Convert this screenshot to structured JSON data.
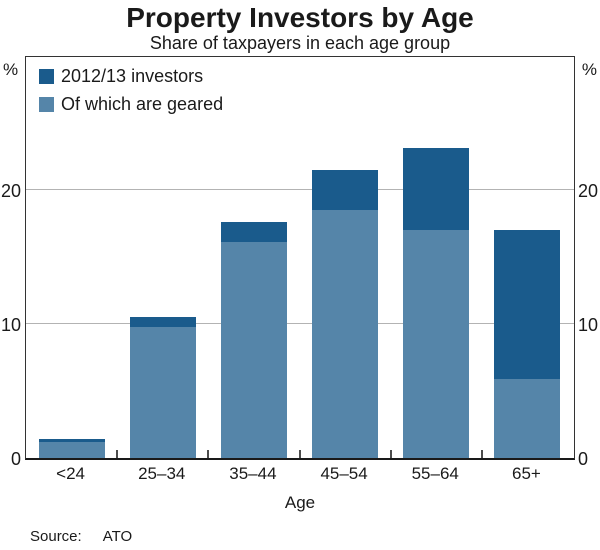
{
  "title": "Property Investors by Age",
  "subtitle": "Share of taxpayers in each age group",
  "axis": {
    "unit_left": "%",
    "unit_right": "%",
    "xlabel": "Age"
  },
  "source": {
    "label": "Source:",
    "value": "ATO"
  },
  "colors": {
    "investors_dark_blue": "#1a5b8c",
    "geared_light_blue": "#5585a9",
    "gridline_gray": "#b3b3b3",
    "axis_dark": "#333333"
  },
  "chart_data": {
    "type": "bar",
    "title": "Property Investors by Age",
    "subtitle": "Share of taxpayers in each age group",
    "xlabel": "Age",
    "ylabel": "%",
    "ylim": [
      0,
      30
    ],
    "yticks": [
      0,
      10,
      20
    ],
    "grid": true,
    "legend_position": "top-left",
    "categories": [
      "<24",
      "25–34",
      "35–44",
      "45–54",
      "55–64",
      "65+"
    ],
    "series": [
      {
        "name": "2012/13 investors",
        "color": "#1a5b8c",
        "values": [
          1.4,
          10.5,
          17.6,
          21.5,
          23.1,
          17.0
        ]
      },
      {
        "name": "Of which are geared",
        "color": "#5585a9",
        "values": [
          1.2,
          9.8,
          16.1,
          18.5,
          17.0,
          5.9
        ]
      }
    ]
  }
}
